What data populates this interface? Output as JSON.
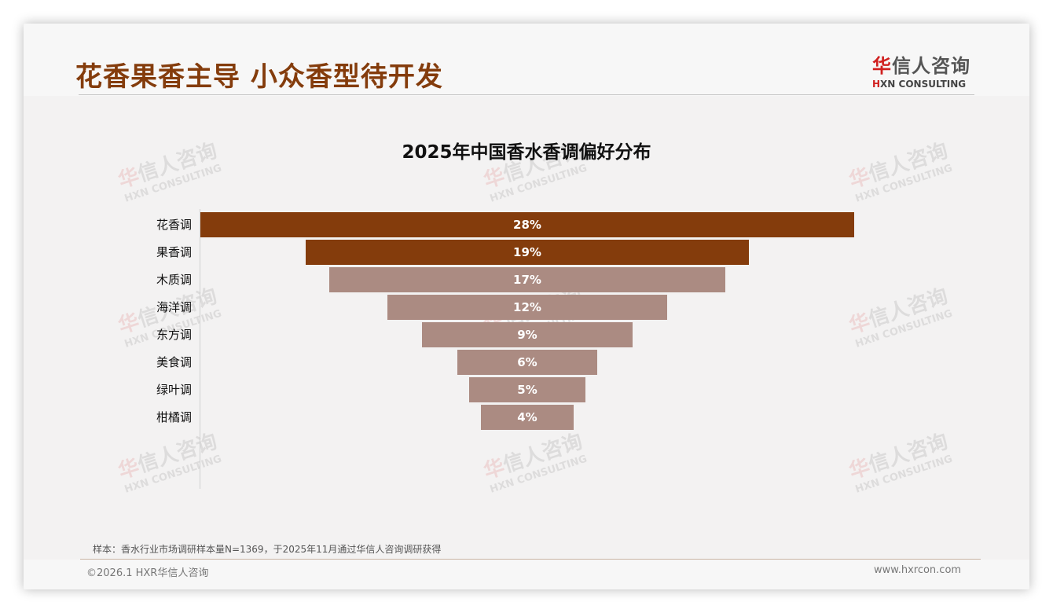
{
  "header": {
    "title": "花香果香主导 小众香型待开发",
    "logo": {
      "cn_red": "华",
      "cn_rest": "信人咨询",
      "en_red": "H",
      "en_rest": "XN CONSULTING"
    }
  },
  "watermark": {
    "cn_red": "华",
    "cn_rest": "信人咨询",
    "en": "HXN CONSULTING"
  },
  "chart_data": {
    "type": "bar",
    "orientation": "horizontal",
    "style": "funnel (centered bars)",
    "title": "2025年中国香水香调偏好分布",
    "xlabel": "",
    "ylabel": "",
    "categories": [
      "花香调",
      "果香调",
      "木质调",
      "海洋调",
      "东方调",
      "美食调",
      "绿叶调",
      "柑橘调"
    ],
    "values": [
      28,
      19,
      17,
      12,
      9,
      6,
      5,
      4
    ],
    "value_labels": [
      "28%",
      "19%",
      "17%",
      "12%",
      "9%",
      "6%",
      "5%",
      "4%"
    ],
    "unit": "%",
    "colors": [
      "#843c0c",
      "#843c0c",
      "#ab8b82",
      "#ab8b82",
      "#ab8b82",
      "#ab8b82",
      "#ab8b82",
      "#ab8b82"
    ],
    "grid": false,
    "legend": null
  },
  "footer": {
    "note": "样本：香水行业市场调研样本量N=1369，于2025年11月通过华信人咨询调研获得",
    "copyright": "©2026.1 HXR华信人咨询",
    "website": "www.hxrcon.com"
  }
}
